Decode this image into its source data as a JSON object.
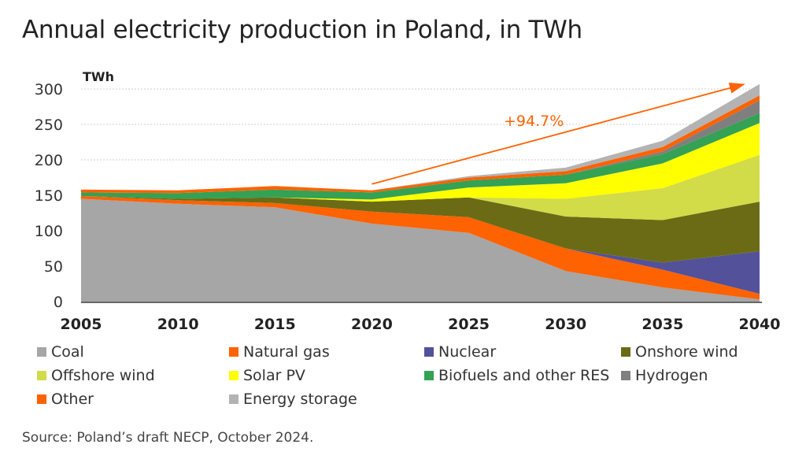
{
  "page": {
    "title": "Annual electricity production in Poland, in TWh",
    "source": "Source: Poland’s draft NECP, October 2024."
  },
  "chart_data": {
    "type": "area",
    "stacked": true,
    "title": "Annual electricity production in Poland, in TWh",
    "ylabel": "TWh",
    "xlabel": "",
    "ylim": [
      0,
      300
    ],
    "yticks": [
      0,
      50,
      100,
      150,
      200,
      250,
      300
    ],
    "grid": "horizontal",
    "legend_placement": "bottom",
    "x": [
      "2005",
      "2010",
      "2015",
      "2020",
      "2025",
      "2030",
      "2035",
      "2040"
    ],
    "series": [
      {
        "name": "Coal",
        "color": "#a6a6a6",
        "values": [
          145,
          138,
          133,
          110,
          97,
          43,
          20,
          3
        ]
      },
      {
        "name": "Natural gas",
        "color": "#ff6200",
        "values": [
          4,
          5,
          6,
          17,
          22,
          32,
          25,
          8
        ]
      },
      {
        "name": "Nuclear",
        "color": "#525199",
        "values": [
          0,
          0,
          0,
          0,
          0,
          0,
          10,
          60
        ]
      },
      {
        "name": "Onshore wind",
        "color": "#6b6b16",
        "values": [
          0,
          2,
          8,
          14,
          28,
          45,
          60,
          70
        ]
      },
      {
        "name": "Offshore wind",
        "color": "#d2db48",
        "values": [
          0,
          0,
          0,
          0,
          0,
          25,
          45,
          66
        ]
      },
      {
        "name": "Solar PV",
        "color": "#ffff00",
        "values": [
          0,
          0,
          0,
          3,
          14,
          22,
          35,
          45
        ]
      },
      {
        "name": "Biofuels and other RES",
        "color": "#34a155",
        "values": [
          5,
          8,
          11,
          10,
          10,
          12,
          13,
          14
        ]
      },
      {
        "name": "Hydrogen",
        "color": "#7f7f7f",
        "values": [
          0,
          0,
          0,
          0,
          0,
          0,
          4,
          18
        ]
      },
      {
        "name": "Other",
        "color": "#ff6200",
        "values": [
          4,
          4,
          5,
          3,
          4,
          5,
          6,
          7
        ]
      },
      {
        "name": "Energy storage",
        "color": "#b3b3b3",
        "values": [
          0,
          0,
          0,
          0,
          2,
          5,
          9,
          16
        ]
      }
    ],
    "annotations": [
      {
        "text": "+94.7%",
        "color": "#ff6200",
        "from": [
          "2020",
          157
        ],
        "to": [
          "2040",
          306
        ]
      }
    ]
  }
}
